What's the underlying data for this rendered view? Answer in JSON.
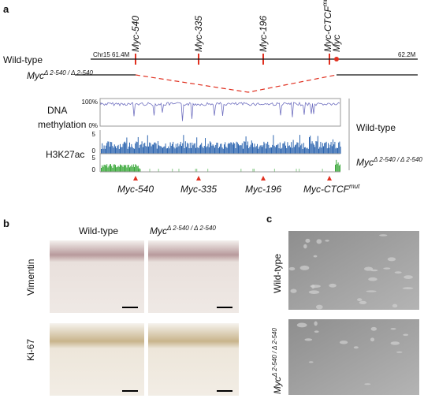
{
  "panel_a": {
    "label": "a",
    "wild_type": "Wild-type",
    "chrom_start": "Chr15 61.4M",
    "chrom_end": "62.2M",
    "elements": [
      "Myc-540",
      "Myc-335",
      "Myc-196"
    ],
    "ctcf": {
      "name": "Myc-CTCF",
      "sup": "mut"
    },
    "gene": "Myc",
    "deletion": {
      "gene": "Myc",
      "sup": "Δ 2-540 / Δ 2-540"
    },
    "methylation": {
      "label_1": "DNA",
      "label_2": "methylation",
      "top": "100%",
      "bottom": "0%"
    },
    "h3k27ac": {
      "label": "H3K27ac",
      "wt_top": "5",
      "wt_bottom": "0",
      "mut_top": "5",
      "mut_bottom": "0"
    }
  },
  "panel_b": {
    "label": "b",
    "rows": [
      "Vimentin",
      "Ki-67"
    ]
  },
  "panel_c": {
    "label": "c"
  }
}
